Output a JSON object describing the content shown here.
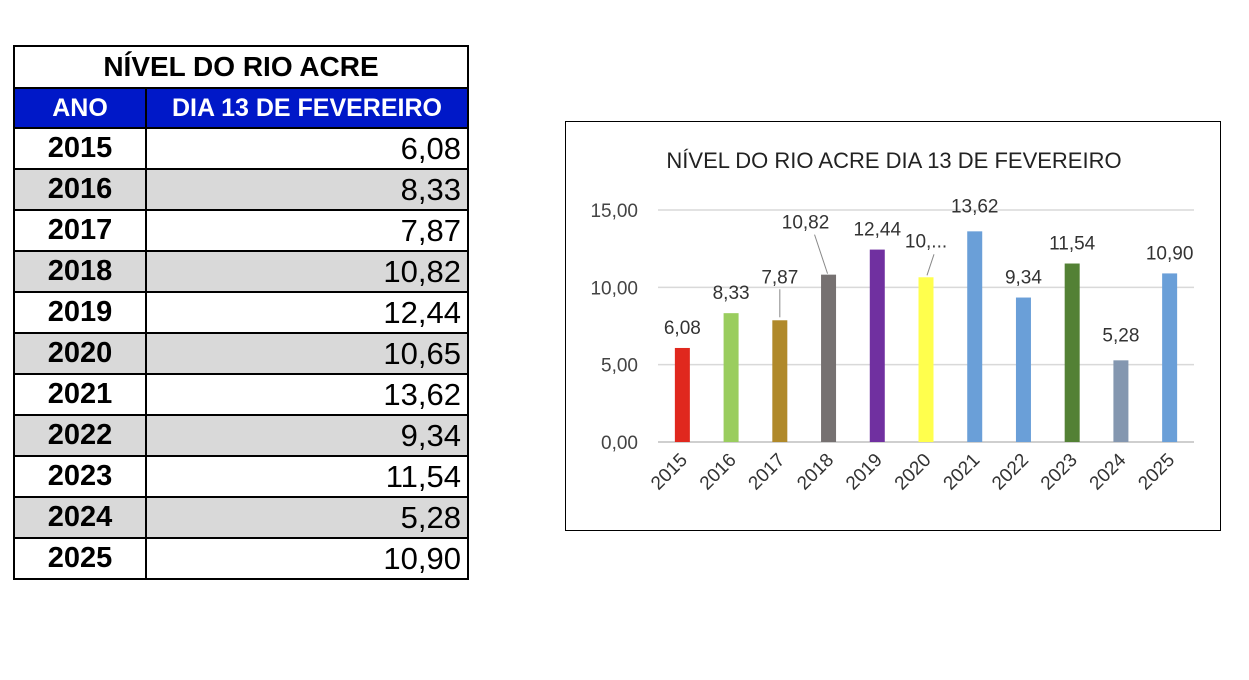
{
  "table": {
    "title": "NÍVEL DO RIO ACRE",
    "col_year": "ANO",
    "col_value": "DIA 13 DE FEVEREIRO",
    "rows": [
      {
        "year": "2015",
        "value": "6,08"
      },
      {
        "year": "2016",
        "value": "8,33"
      },
      {
        "year": "2017",
        "value": "7,87"
      },
      {
        "year": "2018",
        "value": "10,82"
      },
      {
        "year": "2019",
        "value": "12,44"
      },
      {
        "year": "2020",
        "value": "10,65"
      },
      {
        "year": "2021",
        "value": "13,62"
      },
      {
        "year": "2022",
        "value": "9,34"
      },
      {
        "year": "2023",
        "value": "11,54"
      },
      {
        "year": "2024",
        "value": "5,28"
      },
      {
        "year": "2025",
        "value": "10,90"
      }
    ]
  },
  "chart_data": {
    "type": "bar",
    "title": "NÍVEL DO RIO ACRE DIA 13 DE FEVEREIRO",
    "xlabel": "",
    "ylabel": "",
    "categories": [
      "2015",
      "2016",
      "2017",
      "2018",
      "2019",
      "2020",
      "2021",
      "2022",
      "2023",
      "2024",
      "2025"
    ],
    "values": [
      6.08,
      8.33,
      7.87,
      10.82,
      12.44,
      10.65,
      13.62,
      9.34,
      11.54,
      5.28,
      10.9
    ],
    "data_labels": [
      "6,08",
      "8,33",
      "7,87",
      "10,82",
      "12,44",
      "10,...",
      "13,62",
      "9,34",
      "11,54",
      "5,28",
      "10,90"
    ],
    "bar_colors": [
      "#e0281e",
      "#9acd5e",
      "#b0892a",
      "#767171",
      "#7030a0",
      "#ffff4d",
      "#6a9fd8",
      "#6a9fd8",
      "#538135",
      "#8497b0",
      "#6a9fd8"
    ],
    "ylim": [
      0,
      15
    ],
    "yticks": [
      0,
      5,
      10,
      15
    ],
    "ytick_labels": [
      "0,00",
      "5,00",
      "10,00",
      "15,00"
    ],
    "grid": true,
    "legend": "none"
  }
}
